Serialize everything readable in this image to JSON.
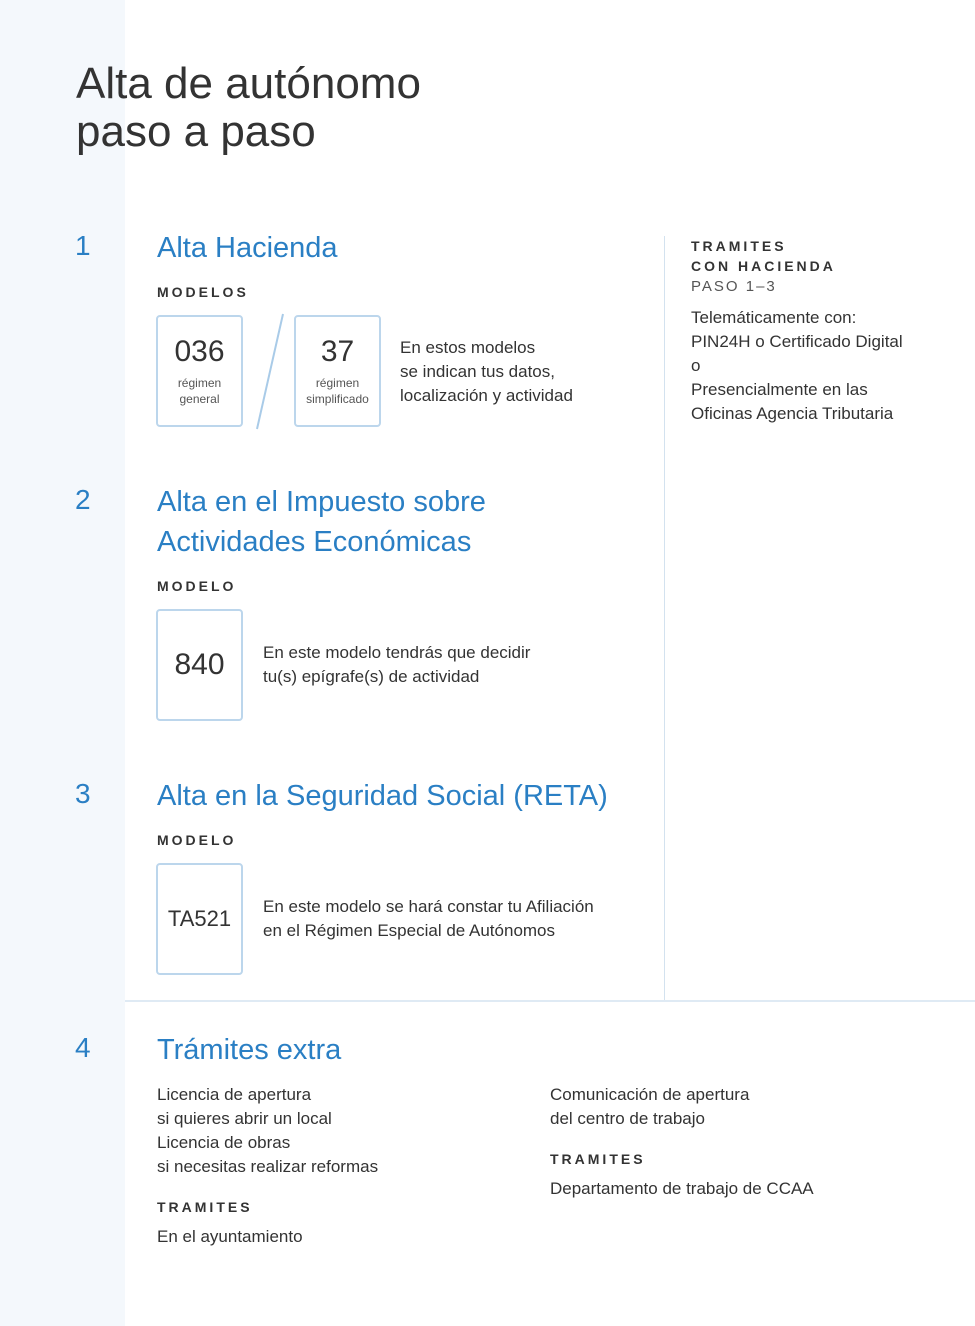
{
  "title": "Alta de autónomo\npaso a paso",
  "steps": [
    {
      "number": "1",
      "heading": "Alta Hacienda",
      "label": "MODELOS",
      "models": [
        {
          "code": "036",
          "sub": "régimen general"
        },
        {
          "code": "37",
          "sub": "régimen simplificado"
        }
      ],
      "desc": [
        "En estos modelos",
        "se indican tus datos,",
        "localización y actividad"
      ]
    },
    {
      "number": "2",
      "heading": [
        "Alta en el Impuesto sobre",
        "Actividades Económicas"
      ],
      "label": "MODELO",
      "models": [
        {
          "code": "840"
        }
      ],
      "desc": [
        "En este modelo tendrás que decidir",
        "tu(s) epígrafe(s) de actividad"
      ]
    },
    {
      "number": "3",
      "heading": "Alta en la Seguridad Social (RETA)",
      "label": "MODELO",
      "models": [
        {
          "code": "TA521"
        }
      ],
      "desc": [
        "En este modelo se hará constar tu Afiliación",
        "en el Régimen Especial de Autónomos"
      ]
    },
    {
      "number": "4",
      "heading": "Trámites extra"
    }
  ],
  "sidebar": {
    "label1": "TRAMITES",
    "label2": "CON HACIENDA",
    "sub": "PASO 1–3",
    "lines": [
      "Telemáticamente con:",
      "PIN24H o Certificado Digital",
      "o",
      "Presencialmente en las",
      "Oficinas Agencia Tributaria"
    ]
  },
  "extra": {
    "left": [
      "Licencia de apertura",
      "si quieres abrir un local",
      "Licencia de obras",
      "si necesitas realizar reformas"
    ],
    "left_label": "TRAMITES",
    "left_where": "En el ayuntamiento",
    "right": [
      "Comunicación de apertura",
      "del centro de trabajo"
    ],
    "right_label": "TRAMITES",
    "right_where": "Departamento de trabajo de CCAA"
  }
}
